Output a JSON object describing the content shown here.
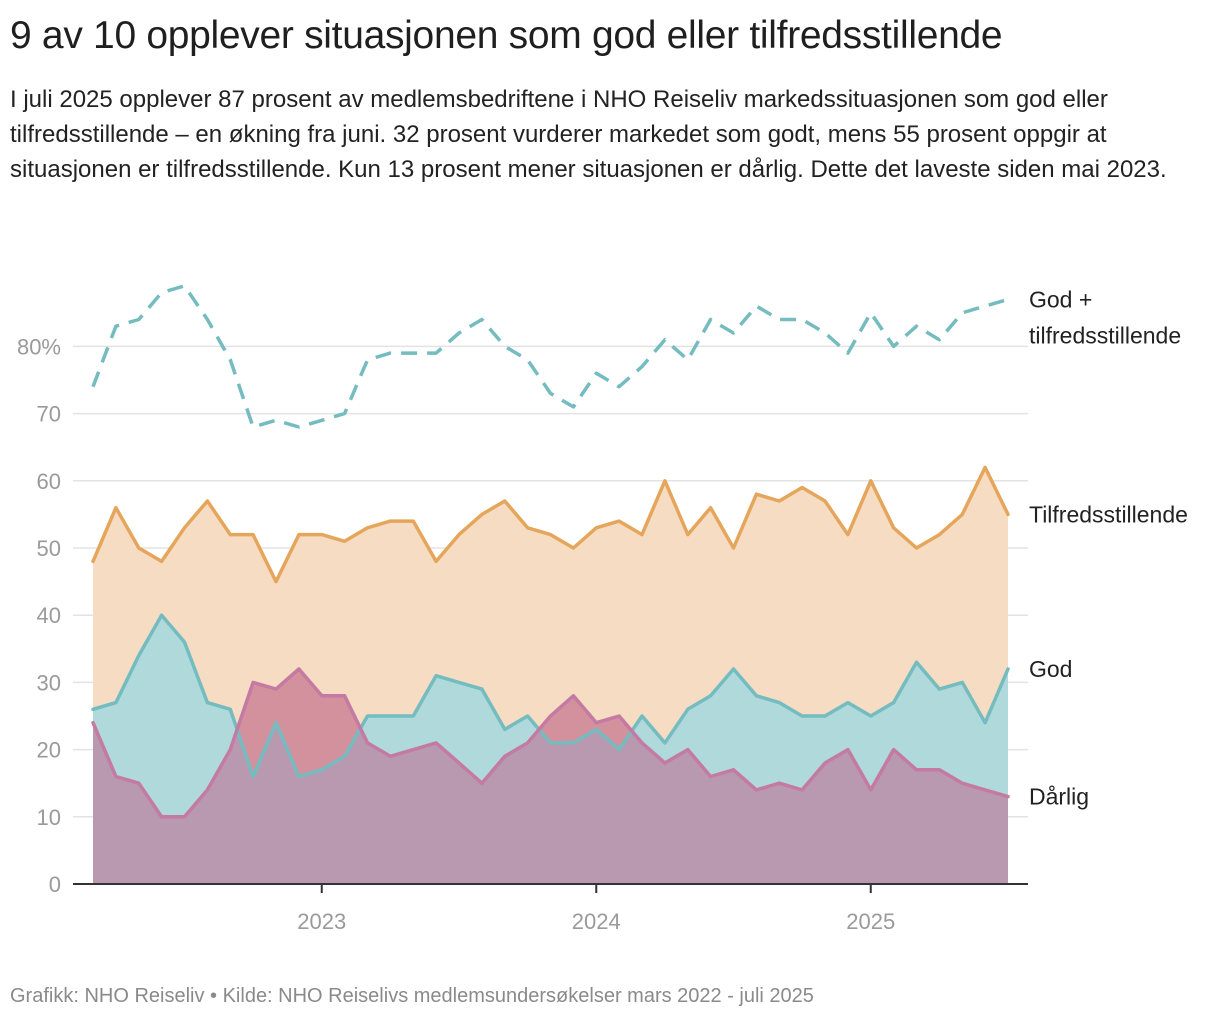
{
  "title": "9 av 10 opplever situasjonen som god eller tilfredsstillende",
  "subtitle": "I juli 2025 opplever 87 prosent av medlemsbedriftene i NHO Reiseliv markedssituasjonen som god eller tilfredsstillende – en økning fra juni. 32 prosent vurderer markedet som godt, mens 55 prosent oppgir at situasjonen er tilfredsstillende. Kun 13 prosent mener situasjonen er dårlig. Dette det laveste siden mai 2023.",
  "source": "Grafikk: NHO Reiseliv • Kilde: NHO Reiselivs medlemsundersøkelser mars 2022 - juli 2025",
  "chart_data": {
    "type": "area",
    "title": "9 av 10 opplever situasjonen som god eller tilfredsstillende",
    "x_start": "2022-03",
    "x_end": "2025-07",
    "x_unit": "month",
    "x_tick_labels": [
      "2023",
      "2024",
      "2025"
    ],
    "y_tick_labels": [
      "0",
      "10",
      "20",
      "30",
      "40",
      "50",
      "60",
      "70",
      "80%"
    ],
    "ylim": [
      0,
      90
    ],
    "grid": true,
    "legend": "direct labels at right",
    "series": [
      {
        "name": "God + tilfredsstillende",
        "label_lines": [
          "God +",
          "tilfredsstillende"
        ],
        "style": "dashed line",
        "color": "#74bcbf",
        "values": [
          74,
          83,
          84,
          88,
          89,
          84,
          78,
          68,
          69,
          68,
          69,
          70,
          78,
          79,
          79,
          79,
          82,
          84,
          80,
          78,
          73,
          71,
          76,
          74,
          77,
          81,
          78,
          84,
          82,
          86,
          84,
          84,
          82,
          79,
          85,
          80,
          83,
          81,
          85,
          86,
          87
        ]
      },
      {
        "name": "Tilfredsstillende",
        "style": "area",
        "color": "#e5a65b",
        "fill": "#f6dcc3",
        "values": [
          48,
          56,
          50,
          48,
          53,
          57,
          52,
          52,
          45,
          52,
          52,
          51,
          53,
          54,
          54,
          48,
          52,
          55,
          57,
          53,
          52,
          50,
          53,
          54,
          52,
          60,
          52,
          56,
          50,
          58,
          57,
          59,
          57,
          52,
          60,
          53,
          50,
          52,
          55,
          62,
          55
        ]
      },
      {
        "name": "God",
        "style": "area",
        "color": "#74bcbf",
        "fill": "#afd9db",
        "values": [
          26,
          27,
          34,
          40,
          36,
          27,
          26,
          16,
          24,
          16,
          17,
          19,
          25,
          25,
          25,
          31,
          30,
          29,
          23,
          25,
          21,
          21,
          23,
          20,
          25,
          21,
          26,
          28,
          32,
          28,
          27,
          25,
          25,
          27,
          25,
          27,
          33,
          29,
          30,
          24,
          32
        ]
      },
      {
        "name": "Dårlig",
        "style": "area",
        "color": "#c47aa3",
        "fill": "#b899b0",
        "values": [
          24,
          16,
          15,
          10,
          10,
          14,
          20,
          30,
          29,
          32,
          28,
          28,
          21,
          19,
          20,
          21,
          18,
          15,
          19,
          21,
          25,
          28,
          24,
          25,
          21,
          18,
          20,
          16,
          17,
          14,
          15,
          14,
          18,
          20,
          14,
          20,
          17,
          17,
          15,
          14,
          13
        ]
      }
    ],
    "colors": {
      "god_fill": "#afd9db",
      "daarlig_overlap_fill": "#d3909d",
      "tilfreds_fill": "#f6dcc3",
      "grid": "#e3e3e3",
      "axis": "#333333"
    }
  }
}
